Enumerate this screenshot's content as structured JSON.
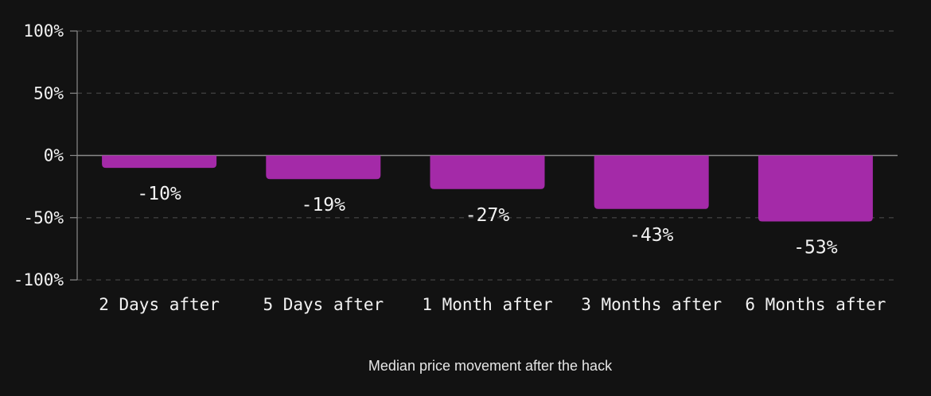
{
  "caption": "Median price movement after the hack",
  "chart_data": {
    "type": "bar",
    "title": "",
    "xlabel": "Median price movement after the hack",
    "ylabel": "",
    "categories": [
      "2 Days after",
      "5 Days after",
      "1 Month after",
      "3 Months after",
      "6 Months after"
    ],
    "values": [
      -10,
      -19,
      -27,
      -43,
      -53
    ],
    "value_labels": [
      "-10%",
      "-19%",
      "-27%",
      "-43%",
      "-53%"
    ],
    "ylim": [
      -100,
      100
    ],
    "yticks": [
      100,
      50,
      0,
      -50,
      -100
    ],
    "ytick_labels": [
      "100%",
      "50%",
      "0%",
      "-50%",
      "-100%"
    ],
    "grid": true,
    "legend": "none",
    "colors": {
      "bar": "#a42aa8",
      "background": "#121212",
      "grid": "#3a3a3a",
      "axis": "#8a8a8a",
      "text": "#f2f2f2"
    }
  }
}
